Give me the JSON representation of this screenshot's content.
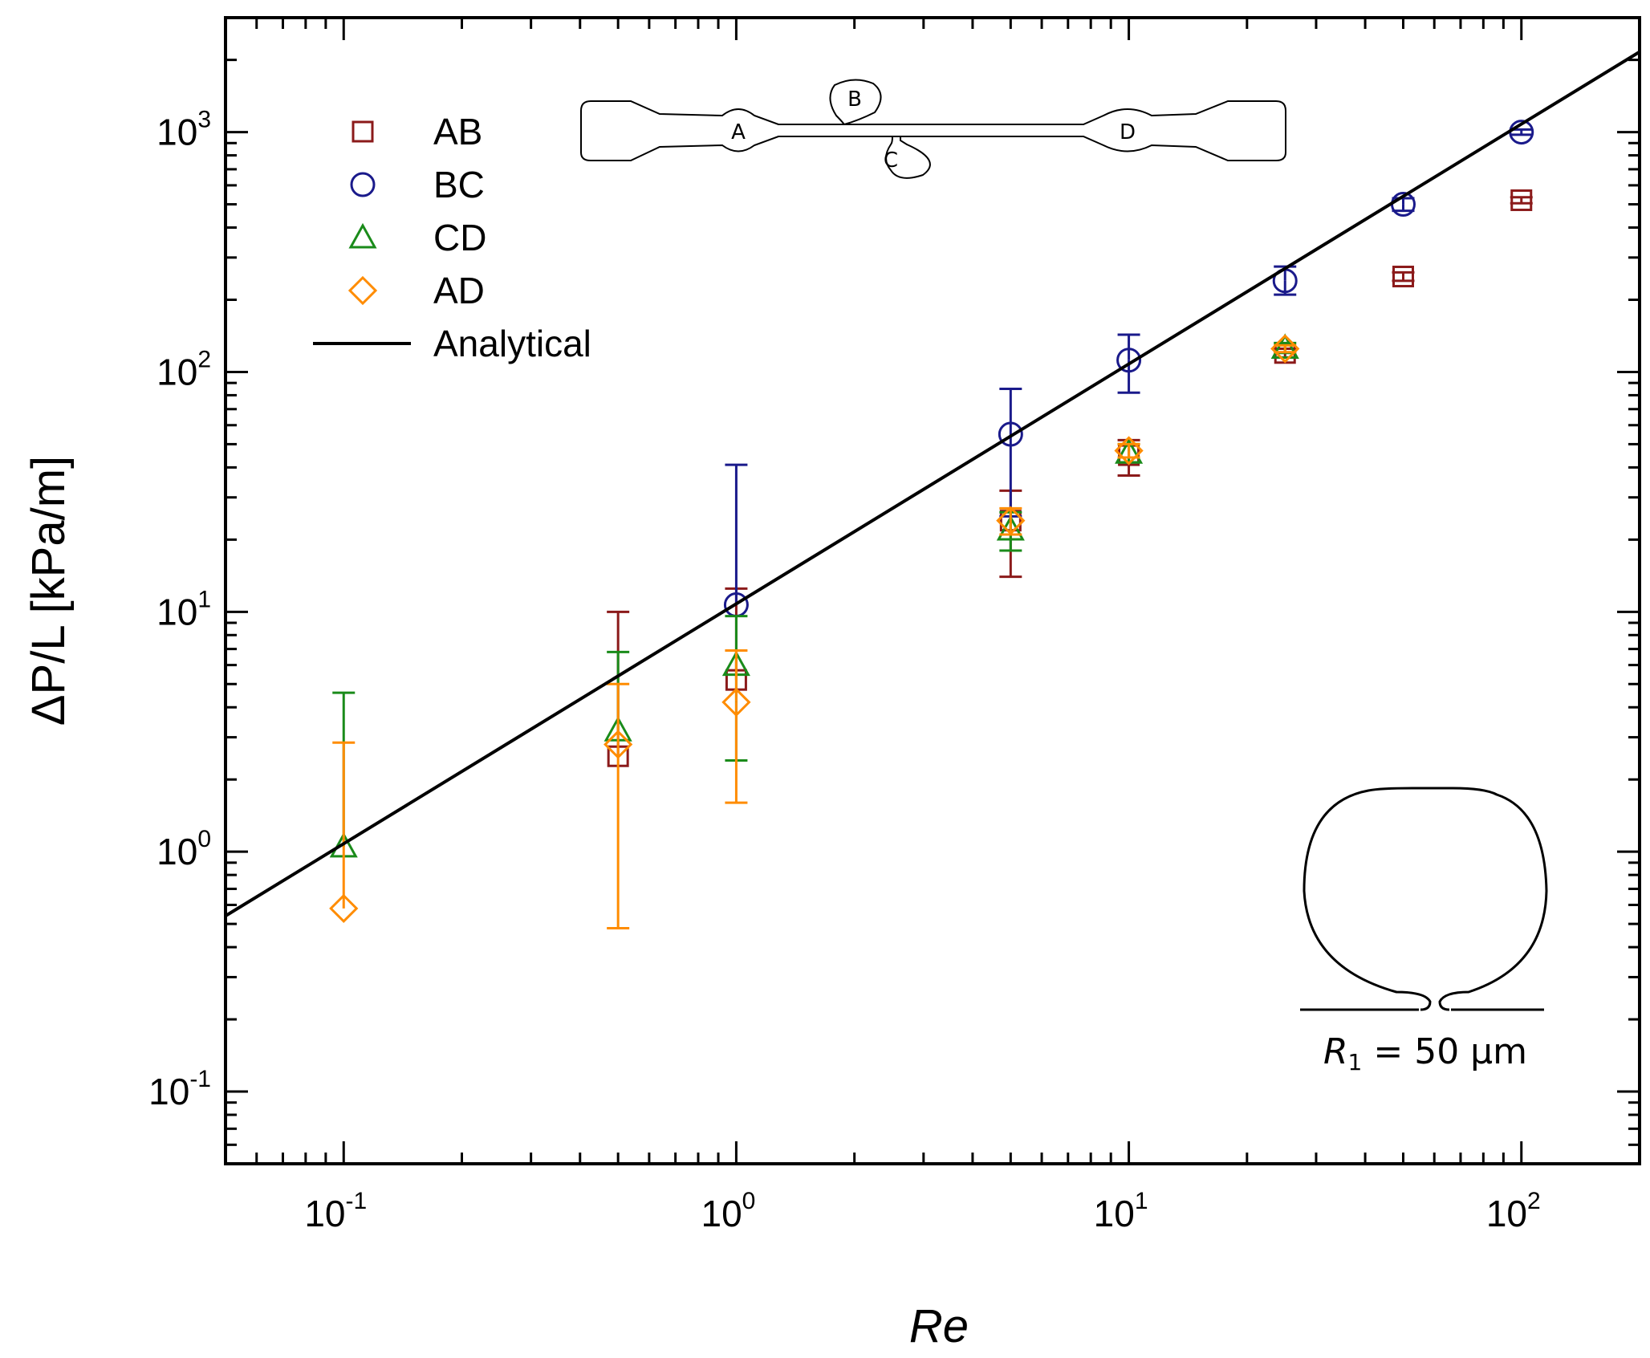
{
  "chart_data": {
    "type": "scatter",
    "xlabel": "Re",
    "ylabel": "ΔP/L [kPa/m]",
    "xscale": "log",
    "yscale": "log",
    "xlim": [
      0.05,
      200
    ],
    "ylim": [
      0.05,
      3000
    ],
    "x_ticks": [
      {
        "value": 0.1,
        "base": "10",
        "exp": "-1"
      },
      {
        "value": 1,
        "base": "10",
        "exp": "0"
      },
      {
        "value": 10,
        "base": "10",
        "exp": "1"
      },
      {
        "value": 100,
        "base": "10",
        "exp": "2"
      }
    ],
    "y_ticks": [
      {
        "value": 0.1,
        "base": "10",
        "exp": "-1"
      },
      {
        "value": 1,
        "base": "10",
        "exp": "0"
      },
      {
        "value": 10,
        "base": "10",
        "exp": "1"
      },
      {
        "value": 100,
        "base": "10",
        "exp": "2"
      },
      {
        "value": 1000,
        "base": "10",
        "exp": "3"
      }
    ],
    "series": [
      {
        "name": "AB",
        "marker": "square",
        "color": "#8b1a1a",
        "points": [
          {
            "x": 0.5,
            "y": 2.5,
            "lo": null,
            "hi": 10.0
          },
          {
            "x": 1,
            "y": 5.2,
            "lo": null,
            "hi": 12.5
          },
          {
            "x": 5,
            "y": 24,
            "lo": 14,
            "hi": 32
          },
          {
            "x": 10,
            "y": 45,
            "lo": 37,
            "hi": 52
          },
          {
            "x": 25,
            "y": 120,
            "lo": 115,
            "hi": 125
          },
          {
            "x": 50,
            "y": 250,
            "lo": 240,
            "hi": 260
          },
          {
            "x": 100,
            "y": 520,
            "lo": 505,
            "hi": 535
          }
        ]
      },
      {
        "name": "BC",
        "marker": "circle",
        "color": "#1a1a8b",
        "points": [
          {
            "x": 1,
            "y": 10.7,
            "lo": null,
            "hi": 41
          },
          {
            "x": 5,
            "y": 55,
            "lo": 25,
            "hi": 85
          },
          {
            "x": 10,
            "y": 112,
            "lo": 82,
            "hi": 143
          },
          {
            "x": 25,
            "y": 240,
            "lo": 210,
            "hi": 275
          },
          {
            "x": 50,
            "y": 500,
            "lo": 470,
            "hi": 530
          },
          {
            "x": 100,
            "y": 1000,
            "lo": 975,
            "hi": 1025
          }
        ]
      },
      {
        "name": "CD",
        "marker": "triangle",
        "color": "#1a8b1a",
        "points": [
          {
            "x": 0.1,
            "y": 1.05,
            "lo": null,
            "hi": 4.6
          },
          {
            "x": 0.5,
            "y": 3.2,
            "lo": null,
            "hi": 6.8
          },
          {
            "x": 1,
            "y": 6.0,
            "lo": 2.4,
            "hi": 9.6
          },
          {
            "x": 5,
            "y": 22,
            "lo": 18,
            "hi": 26
          },
          {
            "x": 10,
            "y": 46,
            "lo": 42,
            "hi": 50
          },
          {
            "x": 25,
            "y": 126,
            "lo": 120,
            "hi": 132
          }
        ]
      },
      {
        "name": "AD",
        "marker": "diamond",
        "color": "#ff8c00",
        "points": [
          {
            "x": 0.1,
            "y": 0.58,
            "lo": null,
            "hi": 2.85
          },
          {
            "x": 0.5,
            "y": 2.8,
            "lo": 0.48,
            "hi": 5.0
          },
          {
            "x": 1,
            "y": 4.2,
            "lo": 1.6,
            "hi": 6.9
          },
          {
            "x": 5,
            "y": 24,
            "lo": 21,
            "hi": 27
          },
          {
            "x": 10,
            "y": 47,
            "lo": 44,
            "hi": 50
          },
          {
            "x": 25,
            "y": 125,
            "lo": 121,
            "hi": 129
          }
        ]
      },
      {
        "name": "Analytical",
        "marker": "line",
        "color": "#000000",
        "line": [
          {
            "x": 0.05,
            "y": 0.54
          },
          {
            "x": 200,
            "y": 2160
          }
        ]
      }
    ],
    "legend_position": "top-left"
  },
  "inset_channel": {
    "labels": [
      "A",
      "B",
      "C",
      "D"
    ]
  },
  "inset_cross_section": {
    "label": "R",
    "subscript": "1",
    "value_text": " = 50 μm"
  }
}
